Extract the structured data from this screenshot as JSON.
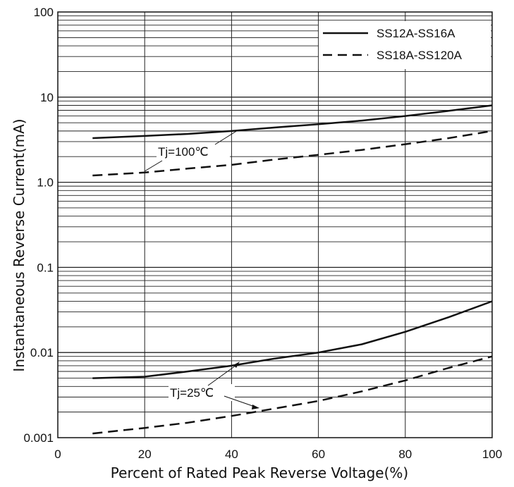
{
  "chart_data": {
    "type": "line",
    "title": "",
    "xlabel": "Percent of Rated Peak Reverse Voltage(%)",
    "ylabel": "Instantaneous Reverse Current(mA)",
    "xlim": [
      0,
      100
    ],
    "ylim": [
      0.001,
      100
    ],
    "yscale": "log",
    "grid": true,
    "legend_position": "top-right",
    "x_ticks": [
      0,
      20,
      40,
      60,
      80,
      100
    ],
    "x_tick_labels": [
      "0",
      "20",
      "40",
      "60",
      "80",
      "100"
    ],
    "y_ticks": [
      0.001,
      0.01,
      0.1,
      1,
      10,
      100
    ],
    "y_tick_labels": [
      "0.001",
      "0.01",
      "0.1",
      "1.0",
      "10",
      "100"
    ],
    "series": [
      {
        "name": "SS12A-SS16A",
        "style": "solid",
        "condition": "Tj=100℃",
        "x": [
          8,
          20,
          30,
          40,
          50,
          60,
          70,
          80,
          90,
          100
        ],
        "y": [
          3.3,
          3.5,
          3.7,
          4.0,
          4.4,
          4.8,
          5.3,
          6.0,
          6.9,
          8.0
        ]
      },
      {
        "name": "SS18A-SS120A",
        "style": "dashed",
        "condition": "Tj=100℃",
        "x": [
          8,
          20,
          30,
          40,
          50,
          60,
          70,
          80,
          90,
          100
        ],
        "y": [
          1.2,
          1.3,
          1.45,
          1.6,
          1.85,
          2.1,
          2.4,
          2.8,
          3.3,
          4.0
        ]
      },
      {
        "name": "SS12A-SS16A",
        "style": "solid",
        "condition": "Tj=25℃",
        "x": [
          8,
          20,
          30,
          40,
          50,
          60,
          70,
          80,
          90,
          100
        ],
        "y": [
          0.005,
          0.0052,
          0.006,
          0.007,
          0.0085,
          0.01,
          0.0125,
          0.0175,
          0.026,
          0.04
        ]
      },
      {
        "name": "SS18A-SS120A",
        "style": "dashed",
        "condition": "Tj=25℃",
        "x": [
          8,
          20,
          30,
          40,
          50,
          60,
          70,
          80,
          90,
          100
        ],
        "y": [
          0.00112,
          0.0013,
          0.0015,
          0.0018,
          0.0022,
          0.0027,
          0.0035,
          0.0047,
          0.0066,
          0.009
        ]
      }
    ],
    "annotations": [
      {
        "text": "Tj=100℃"
      },
      {
        "text": "Tj=25℃"
      }
    ]
  }
}
